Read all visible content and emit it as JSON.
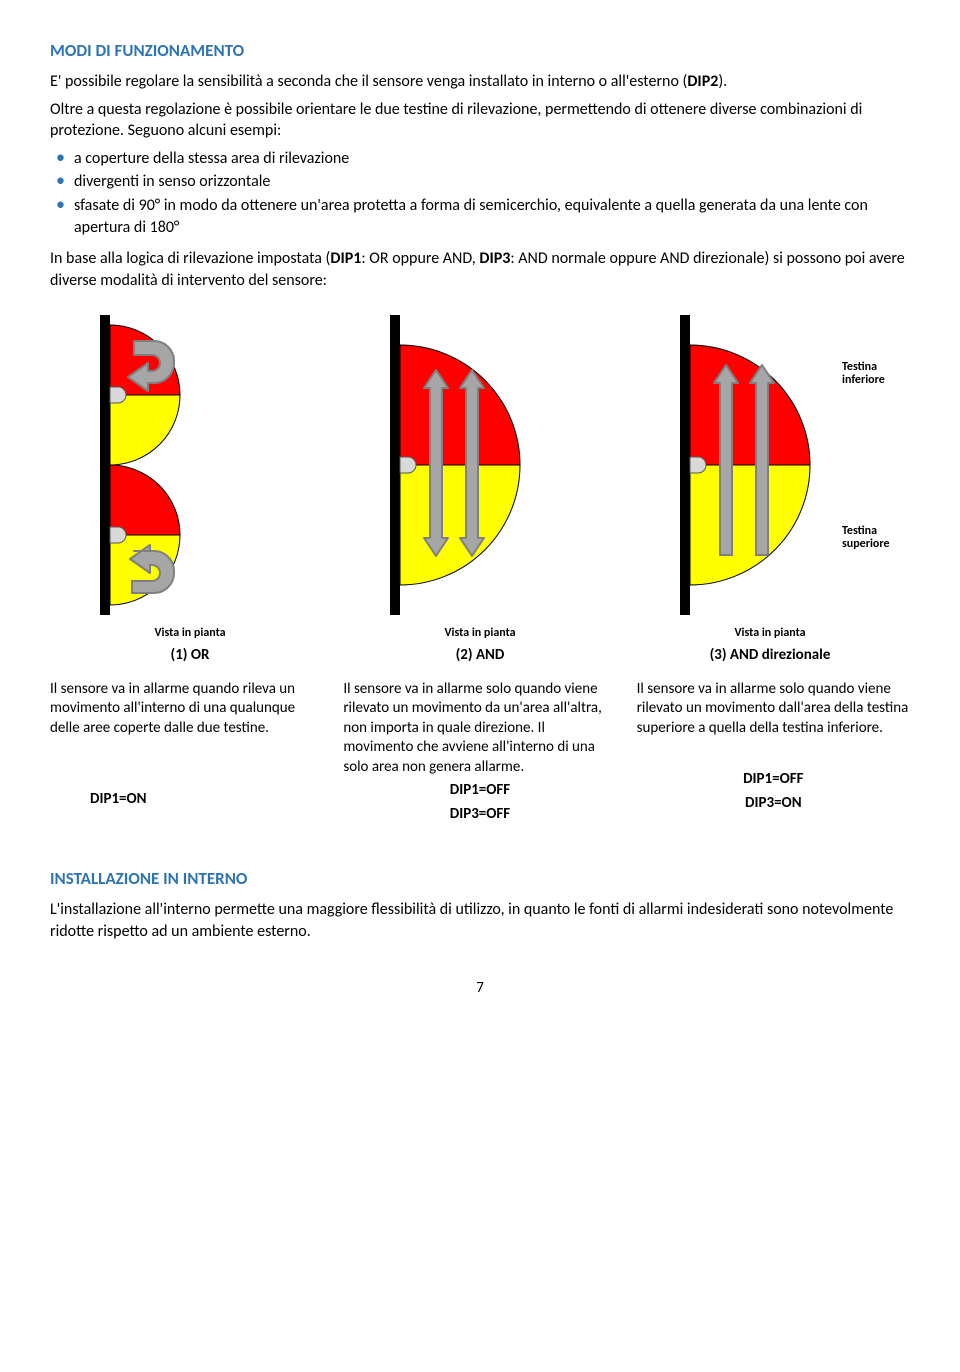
{
  "colors": {
    "heading_blue": "#2e74b5",
    "bullet_blue": "#2e74b5",
    "red": "#ff0000",
    "yellow": "#ffff00",
    "wall": "#000000",
    "arrow_fill": "#a6a6a6",
    "arrow_stroke": "#7f7f7f",
    "sensor_fill": "#d9d9d9",
    "sensor_stroke": "#595959"
  },
  "section1_title": "MODI DI FUNZIONAMENTO",
  "para1_pre": "E' possibile regolare la sensibilità a seconda che il sensore venga installato in interno o all'esterno (",
  "para1_bold": "DIP2",
  "para1_post": ").",
  "para2": "Oltre a questa regolazione è possibile orientare le due testine di rilevazione, permettendo di ottenere diverse combinazioni di protezione. Seguono alcuni esempi:",
  "bullets": [
    "a coperture della stessa area di rilevazione",
    "divergenti in senso orizzontale",
    "sfasate di 90° in modo da ottenere un'area protetta a forma di semicerchio, equivalente a quella generata da una lente con apertura di 180°"
  ],
  "para3_pre": "In base alla logica di rilevazione impostata (",
  "para3_b1": "DIP1",
  "para3_mid1": ": OR oppure AND, ",
  "para3_b2": "DIP3",
  "para3_mid2": ": AND normale oppure AND direzionale) si possono poi avere diverse modalità di intervento del sensore:",
  "label_testina_inf": "Testina inferiore",
  "label_testina_sup": "Testina superiore",
  "vista": "Vista in pianta",
  "mode1": "(1) OR",
  "mode2": "(2) AND",
  "mode3": "(3) AND direzionale",
  "desc1": "Il sensore va in allarme quando rileva un movimento all'interno di una qualunque delle aree coperte dalle due testine.",
  "desc2": "Il sensore va in allarme solo quando viene rilevato un movimento da un'area all'altra, non importa in quale direzione. Il movimento che avviene all'interno di una solo area non genera allarme.",
  "desc3": "Il sensore va in allarme solo quando viene rilevato un movimento dall'area della testina superiore a quella della testina inferiore.",
  "dip1on": "DIP1=ON",
  "dip1off_a": "DIP1=OFF",
  "dip3off": "DIP3=OFF",
  "dip1off_b": "DIP1=OFF",
  "dip3on": "DIP3=ON",
  "section2_title": "INSTALLAZIONE IN INTERNO",
  "para4": "L'installazione all'interno permette una maggiore flessibilità di utilizzo, in quanto le fonti di allarmi indesiderati sono notevolmente ridotte rispetto ad un ambiente esterno.",
  "page_number": "7",
  "diagram": {
    "wall_width": 10,
    "semicircle_radius": 68,
    "arrow_stroke_width": 2
  }
}
